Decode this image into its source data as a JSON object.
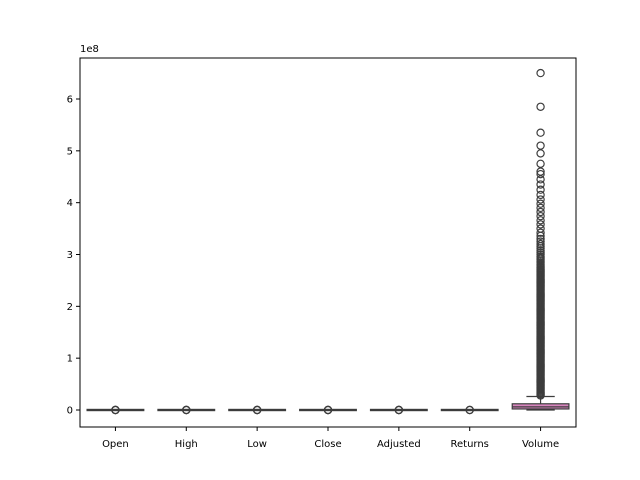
{
  "chart_data": {
    "type": "box",
    "title": "",
    "xlabel": "",
    "ylabel": "",
    "y_offset_label": "1e8",
    "y_scale_exponent": 8,
    "ylim": [
      -0.3,
      6.8
    ],
    "yticks": [
      0,
      1,
      2,
      3,
      4,
      5,
      6
    ],
    "grid": false,
    "legend": "none",
    "categories": [
      "Open",
      "High",
      "Low",
      "Close",
      "Adjusted",
      "Returns",
      "Volume"
    ],
    "colors": [
      "#3a76b0",
      "#e1812c",
      "#3a923a",
      "#c03d3e",
      "#9372b2",
      "#845b53",
      "#d684bd"
    ],
    "outline_color": "#3d3d3d",
    "boxes": [
      {
        "name": "Open",
        "q1": 0,
        "median": 0,
        "q3": 0,
        "whisker_low": 0,
        "whisker_high": 0,
        "outliers": [
          0,
          2e-06,
          4e-06
        ]
      },
      {
        "name": "High",
        "q1": 0,
        "median": 0,
        "q3": 0,
        "whisker_low": 0,
        "whisker_high": 0,
        "outliers": [
          0,
          2e-06,
          4e-06
        ]
      },
      {
        "name": "Low",
        "q1": 0,
        "median": 0,
        "q3": 0,
        "whisker_low": 0,
        "whisker_high": 0,
        "outliers": [
          0,
          2e-06,
          4e-06
        ]
      },
      {
        "name": "Close",
        "q1": 0,
        "median": 0,
        "q3": 0,
        "whisker_low": 0,
        "whisker_high": 0,
        "outliers": [
          0,
          2e-06,
          4e-06
        ]
      },
      {
        "name": "Adjusted",
        "q1": 0,
        "median": 0,
        "q3": 0,
        "whisker_low": 0,
        "whisker_high": 0,
        "outliers": [
          0,
          2e-06,
          4e-06
        ]
      },
      {
        "name": "Returns",
        "q1": 0,
        "median": 0,
        "q3": 0,
        "whisker_low": 0,
        "whisker_high": 0,
        "outliers": [
          0,
          1e-06
        ]
      },
      {
        "name": "Volume",
        "q1": 0.02,
        "median": 0.06,
        "q3": 0.12,
        "whisker_low": 0.0,
        "whisker_high": 0.26,
        "outliers": [
          0.28,
          0.3,
          0.32,
          0.34,
          0.36,
          0.38,
          0.4,
          0.42,
          0.44,
          0.46,
          0.48,
          0.5,
          0.52,
          0.54,
          0.56,
          0.58,
          0.6,
          0.62,
          0.64,
          0.66,
          0.68,
          0.7,
          0.72,
          0.74,
          0.76,
          0.78,
          0.8,
          0.82,
          0.84,
          0.86,
          0.88,
          0.9,
          0.92,
          0.94,
          0.96,
          0.98,
          1.0,
          1.02,
          1.04,
          1.06,
          1.08,
          1.1,
          1.12,
          1.14,
          1.16,
          1.18,
          1.2,
          1.22,
          1.24,
          1.26,
          1.28,
          1.3,
          1.32,
          1.34,
          1.36,
          1.38,
          1.4,
          1.42,
          1.44,
          1.46,
          1.48,
          1.5,
          1.52,
          1.54,
          1.56,
          1.58,
          1.6,
          1.62,
          1.64,
          1.66,
          1.68,
          1.7,
          1.72,
          1.74,
          1.76,
          1.78,
          1.8,
          1.82,
          1.84,
          1.86,
          1.88,
          1.9,
          1.92,
          1.94,
          1.96,
          1.98,
          2.0,
          2.02,
          2.04,
          2.06,
          2.08,
          2.1,
          2.12,
          2.14,
          2.16,
          2.18,
          2.2,
          2.22,
          2.24,
          2.26,
          2.28,
          2.3,
          2.32,
          2.34,
          2.36,
          2.38,
          2.4,
          2.42,
          2.44,
          2.46,
          2.48,
          2.5,
          2.52,
          2.54,
          2.56,
          2.58,
          2.6,
          2.62,
          2.64,
          2.66,
          2.68,
          2.7,
          2.72,
          2.75,
          2.78,
          2.81,
          2.84,
          2.87,
          2.9,
          2.93,
          2.96,
          3.0,
          3.04,
          3.08,
          3.12,
          3.16,
          3.2,
          3.25,
          3.3,
          3.36,
          3.42,
          3.5,
          3.58,
          3.66,
          3.74,
          3.82,
          3.9,
          3.98,
          4.06,
          4.15,
          4.25,
          4.35,
          4.45,
          4.55,
          4.6,
          4.75,
          4.95,
          5.1,
          5.35,
          5.85,
          6.5
        ]
      }
    ]
  }
}
